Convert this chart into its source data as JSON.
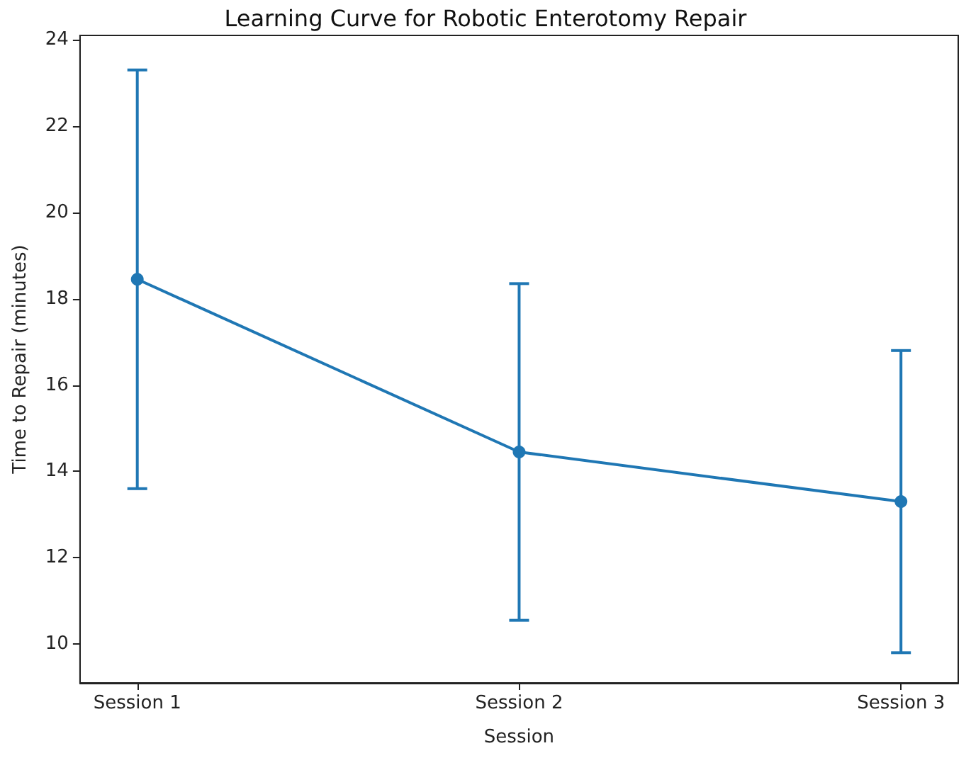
{
  "chart_data": {
    "type": "line",
    "title": "Learning Curve for Robotic Enterotomy Repair",
    "xlabel": "Session",
    "ylabel": "Time to Repair (minutes)",
    "categories": [
      "Session 1",
      "Session 2",
      "Session 3"
    ],
    "series": [
      {
        "color": "#1f77b4",
        "values": [
          18.45,
          14.45,
          13.3
        ],
        "errors": [
          4.85,
          3.9,
          3.5
        ]
      }
    ],
    "ylim": [
      9.1,
      24.1
    ],
    "yticks": [
      10,
      12,
      14,
      16,
      18,
      20,
      22,
      24
    ],
    "grid": false,
    "marker": "circle",
    "line_style": "solid"
  }
}
